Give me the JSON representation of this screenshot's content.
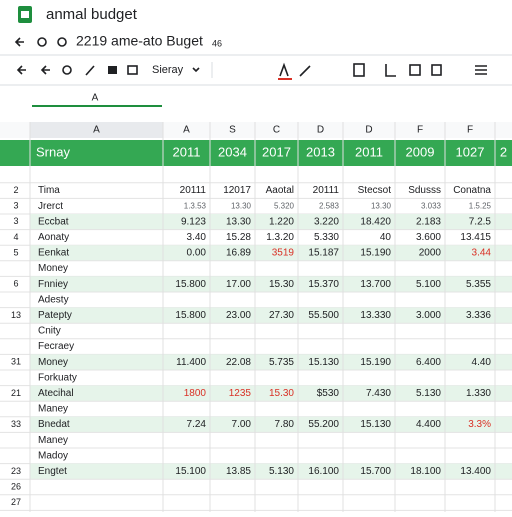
{
  "header": {
    "title": "anmal budget",
    "doc_title": "2219 ame-ato Buget",
    "doc_suffix": "46"
  },
  "toolbar": {
    "font": "Sieray"
  },
  "name_box": "A",
  "columns": [
    "A",
    "A",
    "S",
    "C",
    "D",
    "D",
    "F",
    "F"
  ],
  "table": {
    "header_row": {
      "label": "Srnay",
      "cells": [
        "2011",
        "2034",
        "2017",
        "2013",
        "2011",
        "2009",
        "1027",
        "2"
      ]
    },
    "rows": [
      {
        "number": null,
        "cells": []
      },
      {
        "number": "2",
        "label": "Tima",
        "cells": [
          "20111",
          "12017",
          "Aaotal",
          "20111",
          "Stecsot",
          "Sdusss",
          "Conatna"
        ]
      },
      {
        "number": "3",
        "label": "Jrerct",
        "muted": true,
        "cells": [
          "1.3.53",
          "13.30",
          "5.320",
          "2.583",
          "13.30",
          "3.033",
          "1.5.25"
        ]
      },
      {
        "number": "3",
        "label": "Eccbat",
        "highlight": true,
        "cells": [
          "9.123",
          "13.30",
          "1.220",
          "3.220",
          "18.420",
          "2.183",
          "7.2.5"
        ]
      },
      {
        "number": "4",
        "label": "Aonaty",
        "cells": [
          "3.40",
          "15.28",
          "1.3.20",
          "5.330",
          "40",
          "3.600",
          "13.415"
        ]
      },
      {
        "number": "5",
        "label": "Eenkat",
        "highlight": true,
        "cells": [
          "0.00",
          "16.89",
          {
            "text": "3519",
            "color": "#d93025"
          },
          "15.187",
          "15.190",
          "2000",
          {
            "text": "3.44",
            "color": "#d93025"
          }
        ]
      },
      {
        "number": null,
        "label": "Money",
        "cells": []
      },
      {
        "number": "6",
        "label": "Fnniey",
        "highlight": true,
        "cells": [
          "15.800",
          "17.00",
          "15.30",
          "15.370",
          "13.700",
          "5.100",
          "5.355"
        ]
      },
      {
        "number": null,
        "label": "Adesty",
        "cells": []
      },
      {
        "number": "13",
        "label": "Patepty",
        "highlight": true,
        "cells": [
          "15.800",
          "23.00",
          "27.30",
          "55.500",
          "13.330",
          "3.000",
          "3.336"
        ]
      },
      {
        "number": null,
        "label": "Cnity",
        "cells": []
      },
      {
        "number": null,
        "label": "Fecraey",
        "cells": []
      },
      {
        "number": "31",
        "label": "Money",
        "highlight": true,
        "cells": [
          "11.400",
          "22.08",
          "5.735",
          "15.130",
          "15.190",
          "6.400",
          "4.40"
        ]
      },
      {
        "number": null,
        "label": "Forkuaty",
        "cells": []
      },
      {
        "number": "21",
        "label": "Atecihal",
        "highlight": true,
        "cells": [
          {
            "text": "1800",
            "color": "#d93025"
          },
          {
            "text": "1235",
            "color": "#d93025"
          },
          {
            "text": "15.30",
            "color": "#d93025"
          },
          "$530",
          "7.430",
          "5.130",
          "1.330"
        ]
      },
      {
        "number": null,
        "label": "Maney",
        "cells": []
      },
      {
        "number": "33",
        "label": "Bnedat",
        "highlight": true,
        "cells": [
          "7.24",
          "7.00",
          "7.80",
          "55.200",
          "15.130",
          "4.400",
          {
            "text": "3.3%",
            "color": "#d93025"
          }
        ]
      },
      {
        "number": null,
        "label": "Maney",
        "cells": []
      },
      {
        "number": null,
        "label": "Madoy",
        "cells": []
      },
      {
        "number": "23",
        "label": "Engtet",
        "highlight": true,
        "cells": [
          "15.100",
          "13.85",
          "5.130",
          "16.100",
          "15.700",
          "18.100",
          "13.400"
        ]
      },
      {
        "number": "26",
        "cells": []
      },
      {
        "number": "27",
        "cells": []
      }
    ]
  }
}
